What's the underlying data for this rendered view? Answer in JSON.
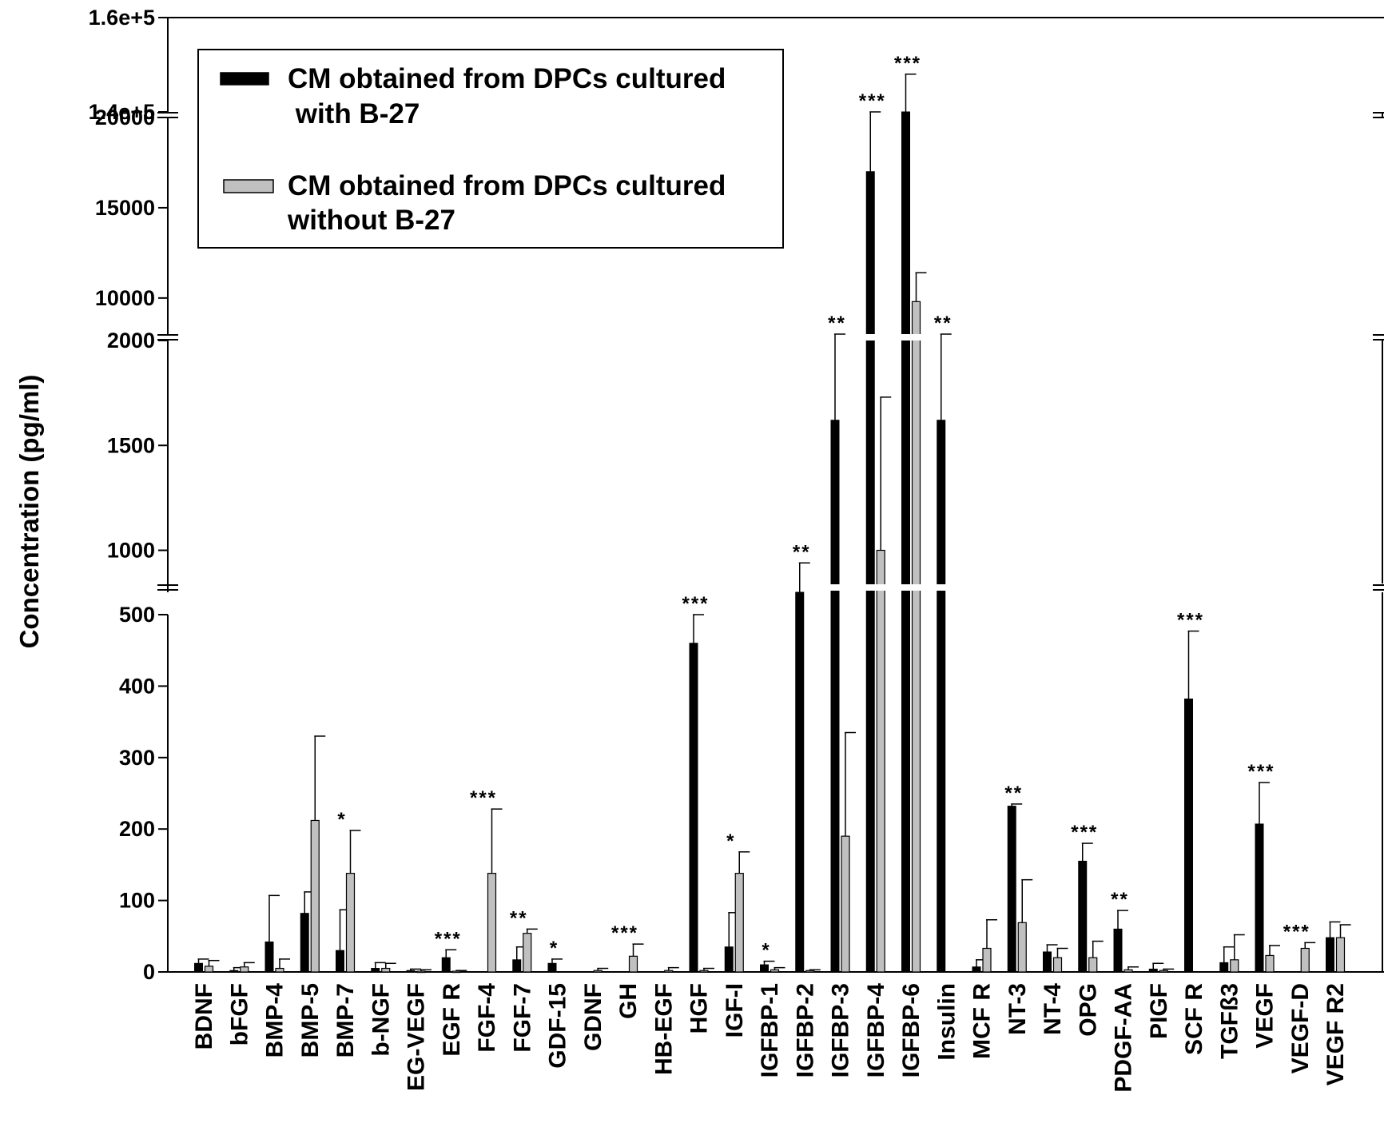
{
  "chart_data": {
    "type": "bar",
    "ylabel": "Concentration (pg/ml)",
    "axis_breaks": [
      [
        500,
        800
      ],
      [
        2000,
        8000
      ],
      [
        20000,
        140000
      ]
    ],
    "y_ticks": [
      {
        "value": 0,
        "label": "0"
      },
      {
        "value": 100,
        "label": "100"
      },
      {
        "value": 200,
        "label": "200"
      },
      {
        "value": 300,
        "label": "300"
      },
      {
        "value": 400,
        "label": "400"
      },
      {
        "value": 500,
        "label": "500"
      },
      {
        "value": 1000,
        "label": "1000"
      },
      {
        "value": 1500,
        "label": "1500"
      },
      {
        "value": 2000,
        "label": "2000"
      },
      {
        "value": 10000,
        "label": "10000"
      },
      {
        "value": 15000,
        "label": "15000"
      },
      {
        "value": 20000,
        "label": "20000"
      },
      {
        "value": 140000,
        "label": "1.4e+5"
      },
      {
        "value": 160000,
        "label": "1.6e+5"
      }
    ],
    "categories": [
      "BDNF",
      "bFGF",
      "BMP-4",
      "BMP-5",
      "BMP-7",
      "b-NGF",
      "EG-VEGF",
      "EGF R",
      "FGF-4",
      "FGF-7",
      "GDF-15",
      "GDNF",
      "GH",
      "HB-EGF",
      "HGF",
      "IGF-I",
      "IGFBP-1",
      "IGFBP-2",
      "IGFBP-3",
      "IGFBP-4",
      "IGFBP-6",
      "Insulin",
      "MCF R",
      "NT-3",
      "NT-4",
      "OPG",
      "PDGF-AA",
      "PIGF",
      "SCF R",
      "TGFß3",
      "VEGF",
      "VEGF-D",
      "VEGF R2"
    ],
    "series": [
      {
        "name": "CM obtained from DPCs cultured with B-27",
        "color": "#000000",
        "values": [
          12,
          2,
          42,
          82,
          30,
          5,
          2,
          20,
          0,
          17,
          12,
          0,
          0,
          0,
          460,
          35,
          10,
          660,
          1620,
          17000,
          136000,
          1620,
          7,
          232,
          28,
          155,
          60,
          4,
          382,
          13,
          207,
          0,
          48
        ],
        "errors": [
          6,
          4,
          65,
          30,
          57,
          8,
          2,
          11,
          0,
          18,
          6,
          0,
          0,
          0,
          40,
          48,
          5,
          280,
          400,
          4000,
          12000,
          580,
          10,
          3,
          10,
          25,
          26,
          8,
          95,
          22,
          58,
          0,
          22
        ]
      },
      {
        "name": "CM obtained from DPCs cultured without B-27",
        "color": "#c0c0c0",
        "values": [
          8,
          7,
          5,
          212,
          138,
          5,
          1,
          1,
          138,
          54,
          0,
          2,
          22,
          2,
          2,
          138,
          3,
          2,
          190,
          1000,
          9800,
          0,
          33,
          69,
          20,
          20,
          3,
          2,
          0,
          17,
          23,
          33,
          48
        ],
        "errors": [
          8,
          6,
          13,
          118,
          60,
          7,
          2,
          1,
          90,
          6,
          0,
          3,
          17,
          4,
          3,
          30,
          3,
          1,
          145,
          730,
          1600,
          0,
          40,
          60,
          13,
          23,
          4,
          2,
          0,
          35,
          14,
          8,
          18
        ]
      }
    ],
    "significance": [
      "",
      "",
      "",
      "",
      "*",
      "",
      "",
      "***",
      "***",
      "**",
      "*",
      "",
      "***",
      "",
      "***",
      "*",
      "*",
      "**",
      "**",
      "***",
      "***",
      "**",
      "",
      "**",
      "",
      "***",
      "**",
      "",
      "***",
      "",
      "***",
      "***",
      ""
    ],
    "legend": {
      "placement": "top-left",
      "entries": [
        {
          "line1": "CM obtained from DPCs cultured",
          "line2": " with B-27"
        },
        {
          "line1": "CM obtained from DPCs cultured",
          "line2": "without B-27"
        }
      ]
    }
  }
}
